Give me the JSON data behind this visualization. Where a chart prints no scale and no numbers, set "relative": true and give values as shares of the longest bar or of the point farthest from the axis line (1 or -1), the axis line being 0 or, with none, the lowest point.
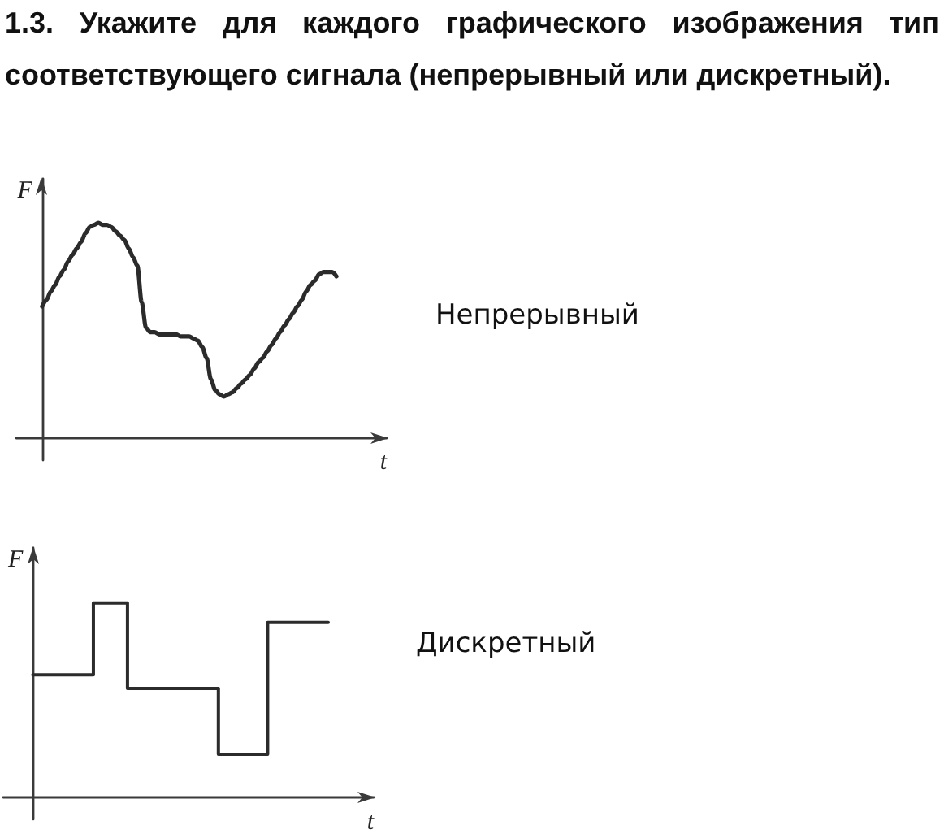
{
  "chart_data": [
    {
      "type": "line",
      "title": "1.3. Укажите для каждого графического изображения тип соответствующего сигнала (непрерывный или дискретный).",
      "xlabel": "t",
      "ylabel": "F",
      "annotations": [
        "Непрерывный"
      ],
      "relative": true,
      "color": "#2b2b2b",
      "categories": [
        null,
        null,
        null,
        null,
        null,
        null,
        null,
        null,
        null,
        null,
        null,
        null,
        null,
        null,
        null,
        null,
        null,
        null,
        null,
        null,
        null,
        null,
        null,
        null,
        null,
        null,
        null,
        null,
        null,
        null,
        null,
        null,
        null,
        null,
        null,
        null,
        null,
        null,
        null,
        null,
        null,
        null,
        null,
        null,
        null,
        null,
        null,
        null,
        null,
        null,
        null,
        null,
        null,
        null,
        null,
        null,
        null,
        null,
        null,
        null,
        null,
        null,
        null,
        null,
        null,
        null,
        null,
        null,
        null
      ],
      "values": [
        0.61,
        0.64,
        0.68,
        0.71,
        0.75,
        0.78,
        0.82,
        0.85,
        0.88,
        0.91,
        0.95,
        0.98,
        0.99,
        1,
        0.99,
        0.99,
        0.98,
        0.96,
        0.94,
        0.92,
        0.88,
        0.84,
        0.8,
        0.63,
        0.51,
        0.49,
        0.49,
        0.48,
        0.48,
        0.48,
        0.48,
        0.48,
        0.47,
        0.47,
        0.47,
        0.46,
        0.45,
        0.42,
        0.37,
        0.27,
        0.22,
        0.2,
        0.19,
        0.2,
        0.21,
        0.23,
        0.25,
        0.27,
        0.29,
        0.32,
        0.35,
        0.37,
        0.4,
        0.43,
        0.46,
        0.49,
        0.52,
        0.55,
        0.58,
        0.61,
        0.64,
        0.68,
        0.71,
        0.73,
        0.76,
        0.77,
        0.77,
        0.77,
        0.75
      ]
    },
    {
      "type": "step",
      "xlabel": "t",
      "ylabel": "F",
      "annotations": [
        "Дискретный"
      ],
      "relative": true,
      "color": "#2b2b2b",
      "categories": [
        null,
        null,
        null,
        null,
        null,
        null,
        null,
        null,
        null,
        null,
        null,
        null,
        null,
        null,
        null,
        null,
        null,
        null,
        null,
        null,
        null,
        null,
        null,
        null,
        null,
        null,
        null,
        null,
        null,
        null,
        null,
        null,
        null,
        null,
        null,
        null,
        null,
        null,
        null,
        null,
        null,
        null,
        null,
        null,
        null,
        null,
        null,
        null,
        null,
        null,
        null,
        null,
        null,
        null,
        null,
        null,
        null,
        null,
        null,
        null,
        null,
        null,
        null,
        null,
        null,
        null,
        null,
        null,
        null,
        null,
        null,
        null,
        null,
        null,
        null,
        null,
        null,
        null,
        null
      ],
      "values": [
        0.63,
        0.63,
        0.63,
        0.63,
        0.63,
        0.63,
        0.63,
        0.63,
        0.63,
        0.63,
        0.63,
        0.63,
        0.63,
        0.63,
        0.63,
        0.63,
        1,
        1,
        1,
        1,
        1,
        1,
        1,
        1,
        1,
        0.56,
        0.56,
        0.56,
        0.56,
        0.56,
        0.56,
        0.56,
        0.56,
        0.56,
        0.56,
        0.56,
        0.56,
        0.56,
        0.56,
        0.56,
        0.56,
        0.56,
        0.56,
        0.56,
        0.56,
        0.56,
        0.56,
        0.56,
        0.56,
        0.22,
        0.22,
        0.22,
        0.22,
        0.22,
        0.22,
        0.22,
        0.22,
        0.22,
        0.22,
        0.22,
        0.22,
        0.22,
        0.9,
        0.9,
        0.9,
        0.9,
        0.9,
        0.9,
        0.9,
        0.9,
        0.9,
        0.9,
        0.9,
        0.9,
        0.9,
        0.9,
        0.9,
        0.9,
        0.9
      ]
    }
  ]
}
